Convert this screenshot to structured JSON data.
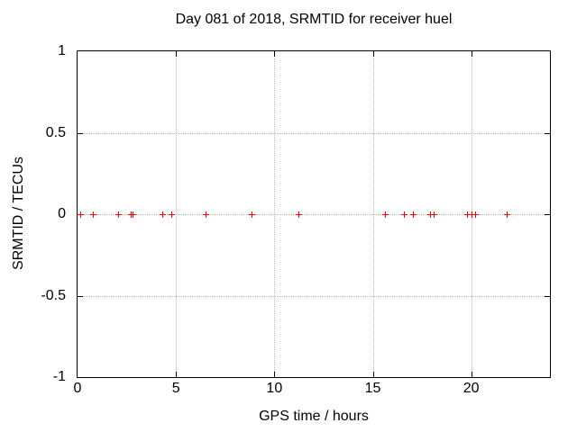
{
  "chart_data": {
    "type": "scatter",
    "title": "Day 081 of 2018, SRMTID for receiver huel",
    "xlabel": "GPS time / hours",
    "ylabel": "SRMTID / TECUs",
    "xlim": [
      0,
      24
    ],
    "ylim": [
      -1,
      1
    ],
    "xticks": [
      0,
      5,
      10,
      15,
      20
    ],
    "xtick_labels": [
      "0",
      "5",
      "10",
      "15",
      "20"
    ],
    "yticks": [
      -1,
      -0.5,
      0,
      0.5,
      1
    ],
    "ytick_labels": [
      "-1",
      "-0.5",
      "0",
      "0.5",
      "1"
    ],
    "grid": true,
    "grid_style": "dotted",
    "legend": "none",
    "series": [
      {
        "name": "SRMTID",
        "marker": "plus",
        "color": "#ff0000",
        "x": [
          0.15,
          0.8,
          2.05,
          2.72,
          2.78,
          4.3,
          4.75,
          6.5,
          8.85,
          11.2,
          15.6,
          16.6,
          17.05,
          17.9,
          18.1,
          19.8,
          20.0,
          20.2,
          21.8
        ],
        "y": [
          0,
          0,
          0,
          0,
          0,
          0,
          0,
          0,
          0,
          0,
          0,
          0,
          0,
          0,
          0,
          0,
          0,
          0,
          0
        ]
      }
    ],
    "colors": {
      "marker": "#ff0000",
      "grid": "#b4b4b4",
      "axis": "#000000",
      "background": "#ffffff",
      "text": "#000000"
    }
  }
}
